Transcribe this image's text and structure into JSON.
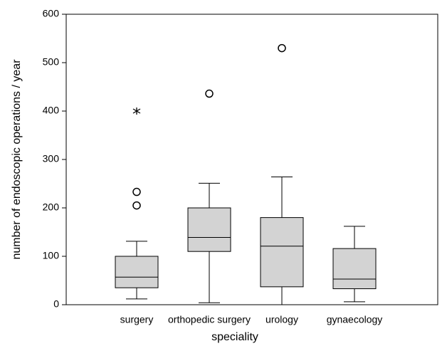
{
  "chart_data": {
    "type": "box",
    "x_label": "speciality",
    "y_label": "number of endoscopic operations / year",
    "categories": [
      "surgery",
      "orthopedic surgery",
      "urology",
      "gynaecology"
    ],
    "boxes": [
      {
        "min": 12,
        "q1": 35,
        "median": 57,
        "q3": 100,
        "max": 131,
        "outliers": [
          205,
          233
        ],
        "extremes": [
          400
        ]
      },
      {
        "min": 4,
        "q1": 110,
        "median": 139,
        "q3": 200,
        "max": 251,
        "outliers": [
          436
        ],
        "extremes": []
      },
      {
        "min": 0,
        "q1": 37,
        "median": 121,
        "q3": 180,
        "max": 264,
        "outliers": [
          530
        ],
        "extremes": []
      },
      {
        "min": 6,
        "q1": 33,
        "median": 53,
        "q3": 116,
        "max": 162,
        "outliers": [],
        "extremes": []
      }
    ],
    "color": "#d3d3d3",
    "ylim": [
      0,
      600
    ],
    "yticks": [
      0,
      100,
      200,
      300,
      400,
      500,
      600
    ]
  }
}
